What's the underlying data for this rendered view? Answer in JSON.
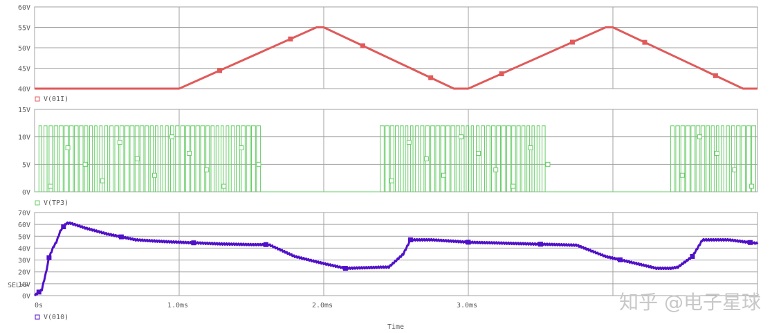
{
  "chart_data": [
    {
      "type": "line",
      "xlim": [
        0,
        5
      ],
      "ylim": [
        40,
        60
      ],
      "yticks": [
        "40V",
        "45V",
        "50V",
        "55V",
        "60V"
      ],
      "series": [
        {
          "name": "V(01I)",
          "color": "#e05a5a",
          "x": [
            0,
            1.0,
            1.95,
            2.0,
            2.9,
            3.0,
            3.95,
            4.0,
            4.9,
            5.0
          ],
          "y": [
            40,
            40,
            55,
            55,
            40,
            40,
            55,
            55,
            40,
            40
          ],
          "marker_x": [
            1.28,
            1.77,
            2.27,
            2.74,
            3.23,
            3.72,
            4.22,
            4.71
          ]
        }
      ]
    },
    {
      "type": "line",
      "xlim": [
        0,
        5
      ],
      "ylim": [
        0,
        15
      ],
      "yticks": [
        "0V",
        "5V",
        "10V",
        "15V"
      ],
      "series": [
        {
          "name": "V(TP3)",
          "color": "#66cc66",
          "high": 12,
          "low": 0,
          "pwm_bursts": [
            [
              0.03,
              1.57
            ],
            [
              2.39,
              3.56
            ],
            [
              4.4,
              5.0
            ]
          ],
          "pwm_period_ms": 0.035
        }
      ]
    },
    {
      "type": "line",
      "xlim": [
        0,
        5
      ],
      "ylim": [
        0,
        70
      ],
      "yticks": [
        "0V",
        "10V",
        "20V",
        "30V",
        "40V",
        "50V",
        "60V",
        "70V"
      ],
      "series": [
        {
          "name": "V(010)",
          "color": "#5010c8",
          "x": [
            0,
            0.05,
            0.08,
            0.1,
            0.13,
            0.15,
            0.18,
            0.2,
            0.22,
            0.25,
            0.35,
            0.5,
            0.7,
            0.9,
            1.1,
            1.3,
            1.5,
            1.62,
            1.8,
            2.0,
            2.15,
            2.3,
            2.4,
            2.45,
            2.55,
            2.6,
            2.75,
            3.0,
            3.3,
            3.6,
            3.75,
            3.95,
            4.2,
            4.3,
            4.4,
            4.45,
            4.55,
            4.62,
            4.8,
            5.0
          ],
          "y": [
            0,
            5,
            20,
            32,
            41,
            45,
            55,
            58,
            61,
            61,
            57,
            52,
            47,
            45.5,
            44.5,
            43.5,
            43,
            43,
            33,
            27,
            23,
            23.5,
            24,
            24,
            35,
            47,
            47,
            45,
            44,
            43,
            42.5,
            33,
            26,
            23,
            23,
            24,
            33,
            47,
            47,
            44
          ]
        }
      ],
      "select_marker": "SEL>>"
    }
  ],
  "x_axis": {
    "title": "Time",
    "ticks": [
      "0s",
      "1.0ms",
      "2.0ms",
      "3.0ms"
    ],
    "tick_values": [
      0,
      1,
      2,
      3
    ]
  },
  "legend": {
    "top": "V(01I)",
    "middle": "V(TP3)",
    "bottom": "V(010)"
  },
  "watermark": "知乎 @电子星球"
}
